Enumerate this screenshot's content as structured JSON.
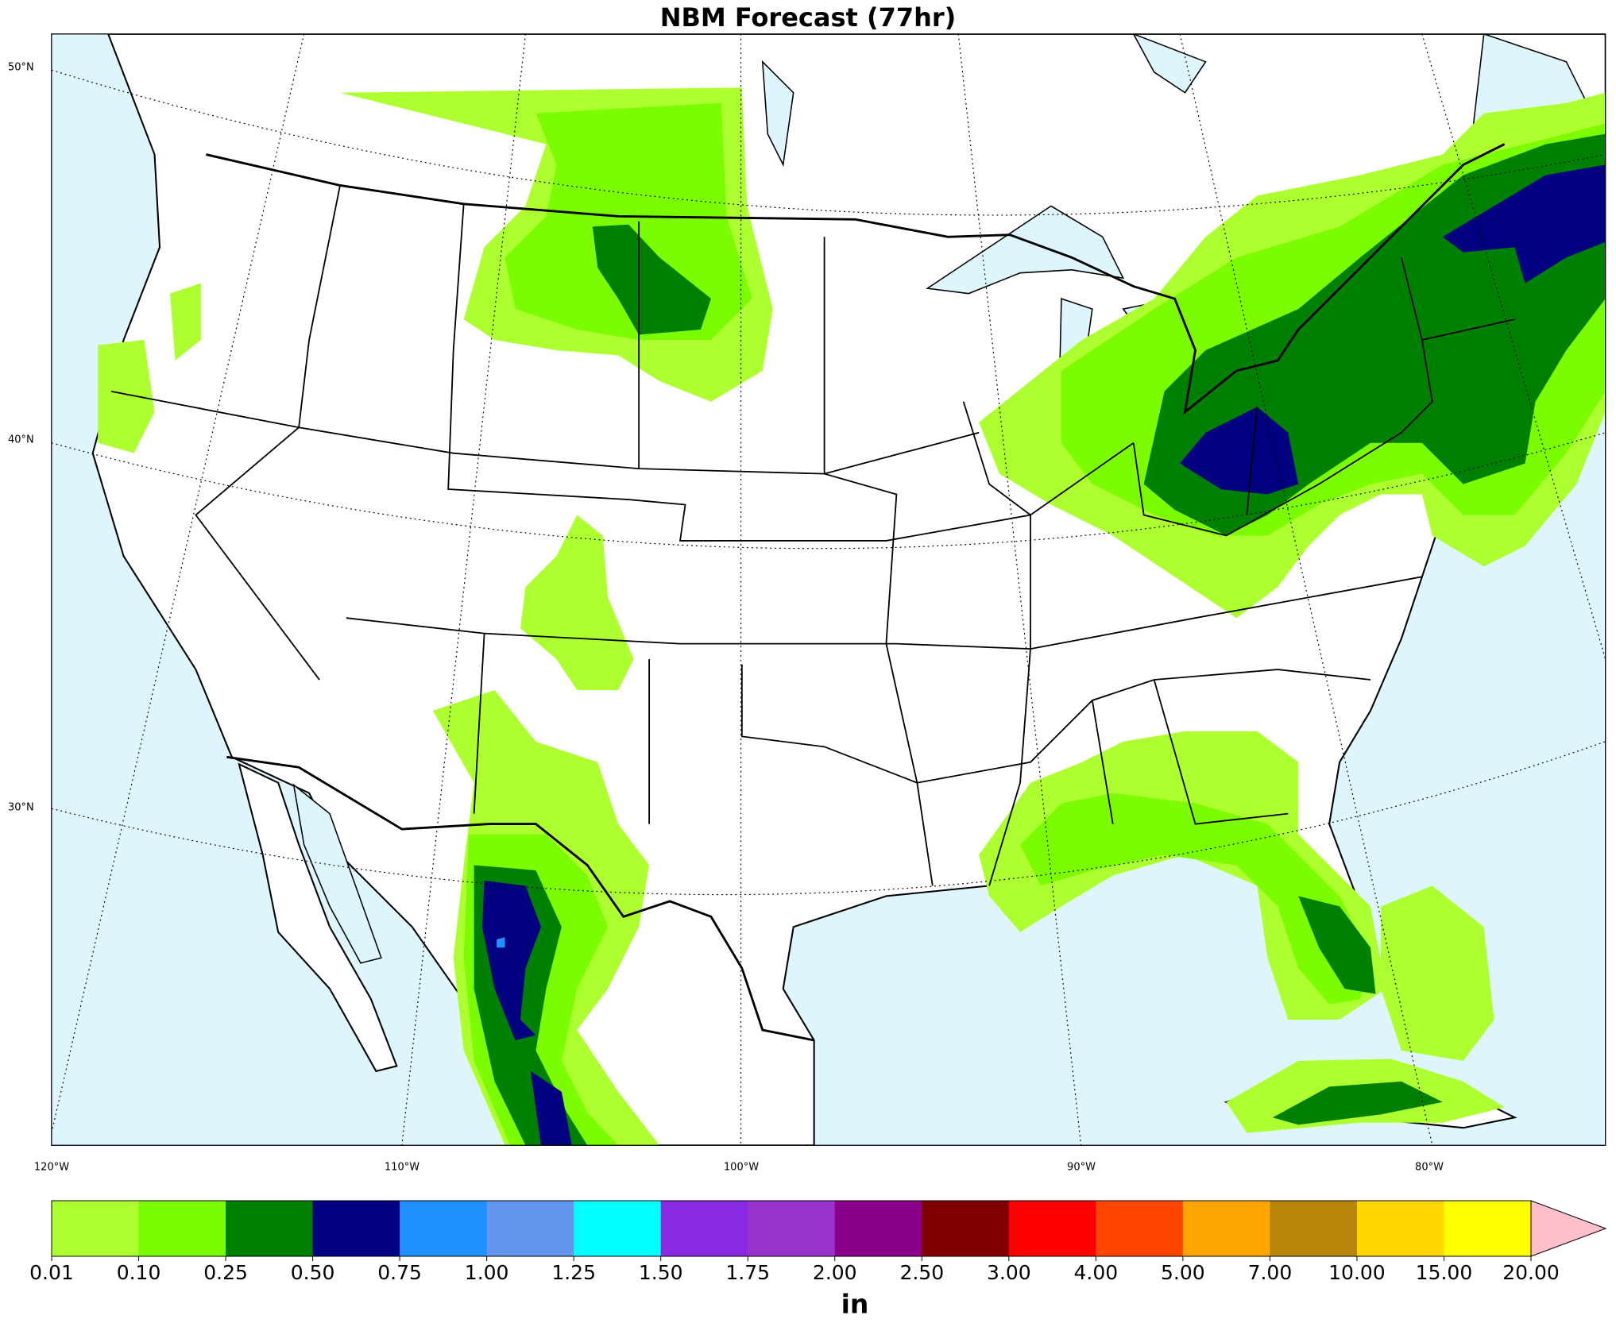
{
  "title": "NBM Forecast (77hr)",
  "lat_labels": [
    "50°N",
    "40°N",
    "30°N"
  ],
  "lon_labels": [
    "120°W",
    "110°W",
    "100°W",
    "90°W",
    "80°W"
  ],
  "colorbar": {
    "levels": [
      "0.01",
      "0.10",
      "0.25",
      "0.50",
      "0.75",
      "1.00",
      "1.25",
      "1.50",
      "1.75",
      "2.00",
      "2.50",
      "3.00",
      "4.00",
      "5.00",
      "7.00",
      "10.00",
      "15.00",
      "20.00"
    ],
    "colors": [
      "#adff2f",
      "#7cfc00",
      "#008000",
      "#000080",
      "#1e90ff",
      "#6495ed",
      "#00ffff",
      "#8a2be2",
      "#9932cc",
      "#8b008b",
      "#800000",
      "#ff0000",
      "#ff4500",
      "#ffa500",
      "#b8860b",
      "#ffd700",
      "#ffff00"
    ],
    "extend_color": "#ffc0cb",
    "label": "in"
  }
}
